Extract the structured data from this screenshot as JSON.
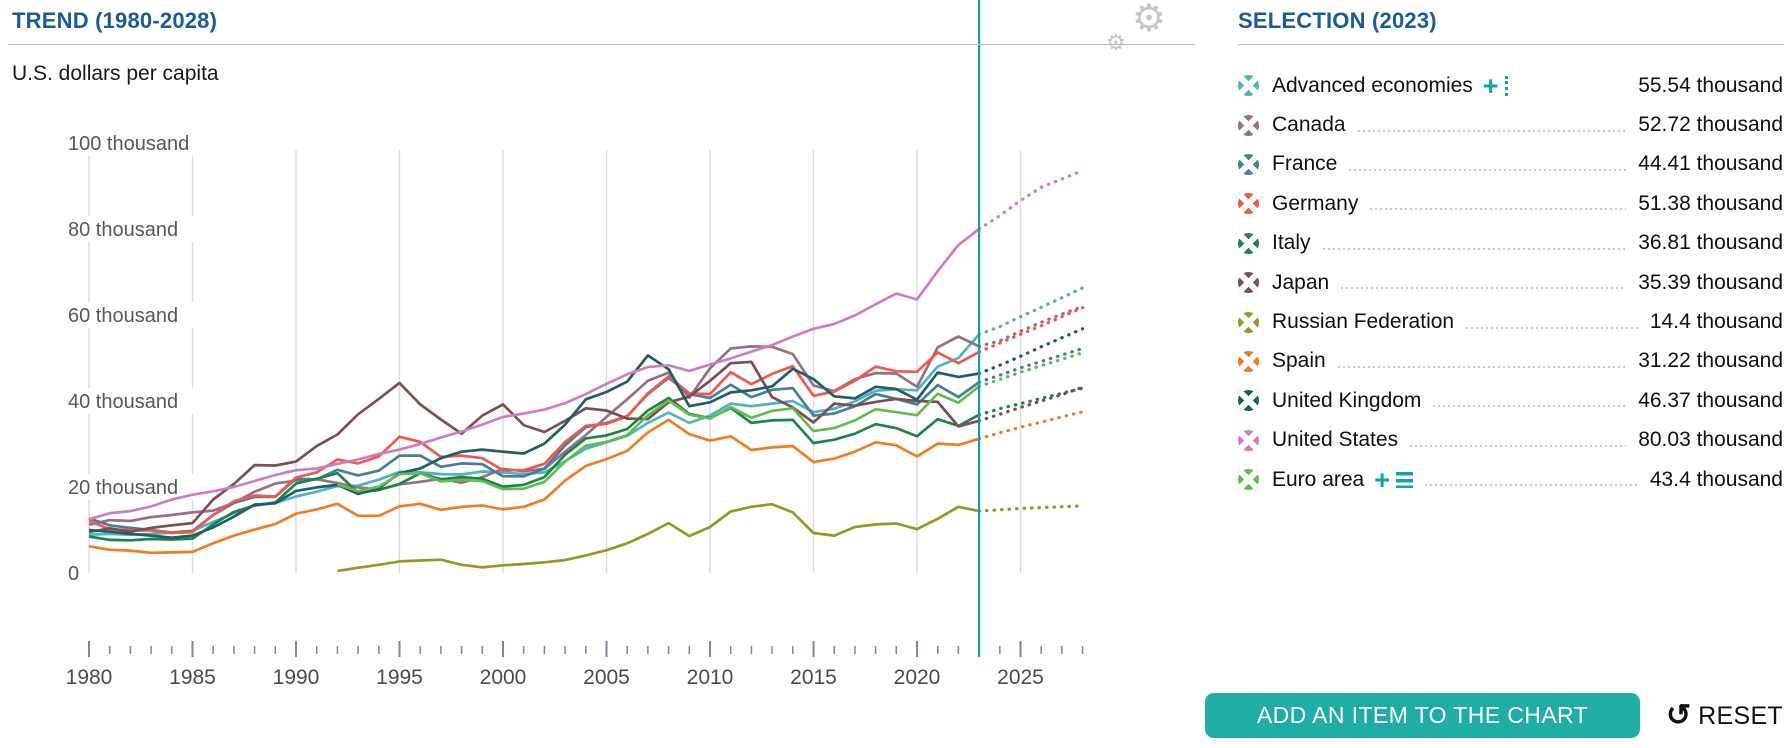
{
  "header": {
    "trend_title": "TREND (1980-2028)",
    "selection_title": "SELECTION (2023)"
  },
  "actions": {
    "add_button": "ADD AN ITEM TO THE CHART",
    "reset_label": "RESET",
    "settings_icon": "gears-icon",
    "reset_icon_glyph": "↺"
  },
  "accent_colors": {
    "title_blue": "#1a5b9b",
    "teal_button": "#20ada6",
    "teal_icon": "#0ea6a0",
    "selection_line": "#2394ae",
    "gridline": "#dcdcdc",
    "tick": "#83839b",
    "axis_text": "#4b4b4b"
  },
  "selection": {
    "rows": [
      {
        "label": "Advanced economies",
        "value": "55.54 thousand",
        "color": "#4eb3c5",
        "add_icons": "plus-dotted",
        "leader": false
      },
      {
        "label": "Canada",
        "value": "52.72 thousand",
        "color": "#9a6f85",
        "add_icons": null,
        "leader": true
      },
      {
        "label": "France",
        "value": "44.41 thousand",
        "color": "#45809b",
        "add_icons": null,
        "leader": true
      },
      {
        "label": "Germany",
        "value": "51.38 thousand",
        "color": "#ef5a4c",
        "add_icons": null,
        "leader": true
      },
      {
        "label": "Italy",
        "value": "36.81 thousand",
        "color": "#1e8549",
        "add_icons": null,
        "leader": true
      },
      {
        "label": "Japan",
        "value": "35.39 thousand",
        "color": "#7d4e53",
        "add_icons": null,
        "leader": true
      },
      {
        "label": "Russian Federation",
        "value": "14.4 thousand",
        "color": "#9a9623",
        "add_icons": null,
        "leader": true
      },
      {
        "label": "Spain",
        "value": "31.22 thousand",
        "color": "#f07d22",
        "add_icons": null,
        "leader": true
      },
      {
        "label": "United Kingdom",
        "value": "46.37 thousand",
        "color": "#205f66",
        "add_icons": null,
        "leader": true
      },
      {
        "label": "United States",
        "value": "80.03 thousand",
        "color": "#cf7cc5",
        "add_icons": null,
        "leader": true
      },
      {
        "label": "Euro area",
        "value": "43.4 thousand",
        "color": "#63bd4e",
        "add_icons": "plus-list",
        "leader": true
      }
    ]
  },
  "chart_data": {
    "type": "line",
    "title": "TREND (1980-2028)",
    "ylabel": "U.S. dollars per capita",
    "unit": "thousand U.S. dollars per capita",
    "xlim": [
      1980,
      2028
    ],
    "ylim": [
      0,
      100
    ],
    "grid": "vertical-only",
    "selection_year": 2023,
    "projection_start": 2023,
    "projection_style": "dotted",
    "y_ticks": [
      {
        "v": 100,
        "label": "100 thousand"
      },
      {
        "v": 80,
        "label": "80 thousand"
      },
      {
        "v": 60,
        "label": "60 thousand"
      },
      {
        "v": 40,
        "label": "40 thousand"
      },
      {
        "v": 20,
        "label": "20 thousand"
      },
      {
        "v": 0,
        "label": "0"
      }
    ],
    "x_ticks": [
      1980,
      1985,
      1990,
      1995,
      2000,
      2005,
      2010,
      2015,
      2020,
      2025
    ],
    "minor_tick_years": [
      1980,
      2028
    ],
    "series": [
      {
        "name": "Advanced economies",
        "color": "#4eb3c5",
        "start_year": 1980,
        "value_2023": 55.54,
        "values": [
          8.9,
          9.1,
          8.9,
          9.1,
          9.4,
          9.8,
          11.9,
          13.9,
          15.7,
          16.3,
          17.8,
          18.9,
          20.2,
          20.3,
          21.7,
          23.5,
          23.4,
          23.0,
          22.9,
          23.6,
          23.4,
          23.0,
          23.4,
          26.0,
          28.9,
          30.4,
          31.9,
          34.9,
          37.3,
          34.9,
          36.6,
          39.4,
          38.8,
          39.4,
          40.0,
          37.4,
          38.2,
          39.9,
          42.4,
          42.7,
          42.5,
          48.0,
          50.0,
          55.5,
          57.3,
          59.6,
          61.8,
          64.0,
          66.3
        ]
      },
      {
        "name": "Canada",
        "color": "#9a6f85",
        "start_year": 1980,
        "value_2023": 52.72,
        "values": [
          11.2,
          12.3,
          12.1,
          13.0,
          13.5,
          14.1,
          14.5,
          16.3,
          18.9,
          20.8,
          21.5,
          21.8,
          20.9,
          19.9,
          19.4,
          20.6,
          21.2,
          21.9,
          21.0,
          22.3,
          24.2,
          23.7,
          24.2,
          28.2,
          32.1,
          36.3,
          40.4,
          44.7,
          46.6,
          40.8,
          47.6,
          52.2,
          52.7,
          52.6,
          50.9,
          43.6,
          42.3,
          45.1,
          46.5,
          46.4,
          43.3,
          52.5,
          55.0,
          52.7,
          54.0,
          56.2,
          58.3,
          60.2,
          62.0
        ]
      },
      {
        "name": "France",
        "color": "#45809b",
        "start_year": 1980,
        "value_2023": 44.41,
        "values": [
          12.7,
          11.1,
          10.5,
          10.0,
          9.4,
          9.8,
          13.5,
          16.3,
          17.7,
          17.7,
          21.9,
          21.8,
          24.0,
          22.7,
          23.8,
          27.3,
          27.3,
          24.7,
          25.5,
          25.3,
          22.5,
          22.5,
          24.3,
          29.7,
          33.9,
          34.9,
          36.5,
          41.6,
          45.4,
          41.6,
          40.7,
          43.8,
          40.9,
          42.6,
          43.0,
          36.6,
          37.1,
          38.8,
          41.6,
          40.5,
          39.2,
          43.7,
          40.9,
          44.4,
          46.0,
          47.7,
          49.2,
          50.7,
          52.2
        ]
      },
      {
        "name": "Germany",
        "color": "#ef5a4c",
        "start_year": 1980,
        "value_2023": 51.38,
        "values": [
          12.1,
          10.2,
          9.9,
          9.9,
          9.3,
          9.5,
          13.5,
          16.7,
          18.0,
          17.8,
          22.2,
          23.4,
          26.4,
          25.5,
          27.1,
          31.7,
          30.5,
          27.0,
          27.3,
          26.7,
          23.9,
          23.9,
          25.4,
          30.5,
          34.2,
          34.7,
          36.4,
          41.8,
          45.7,
          41.8,
          41.6,
          46.7,
          43.9,
          46.3,
          48.1,
          41.2,
          42.2,
          44.7,
          48.0,
          46.9,
          46.8,
          51.3,
          48.8,
          51.4,
          53.5,
          55.5,
          57.5,
          59.6,
          61.7
        ]
      },
      {
        "name": "Italy",
        "color": "#1e8549",
        "start_year": 1980,
        "value_2023": 36.81,
        "values": [
          8.5,
          7.7,
          7.6,
          7.9,
          7.8,
          8.0,
          11.3,
          14.2,
          15.7,
          16.4,
          20.8,
          21.9,
          23.2,
          18.7,
          19.3,
          20.7,
          23.2,
          21.8,
          22.3,
          21.9,
          20.1,
          20.5,
          22.3,
          27.5,
          31.3,
          32.0,
          33.5,
          37.8,
          40.7,
          37.0,
          36.0,
          38.4,
          34.9,
          35.5,
          35.6,
          30.2,
          31.0,
          32.4,
          34.6,
          33.7,
          31.8,
          35.8,
          34.2,
          36.8,
          38.2,
          39.4,
          40.6,
          41.8,
          43.0
        ]
      },
      {
        "name": "Japan",
        "color": "#7d4e53",
        "start_year": 1980,
        "value_2023": 35.39,
        "values": [
          9.5,
          10.4,
          9.6,
          10.5,
          11.1,
          11.6,
          17.1,
          20.7,
          25.1,
          25.0,
          25.9,
          29.5,
          32.2,
          36.9,
          40.5,
          44.2,
          39.2,
          35.7,
          32.4,
          36.6,
          39.2,
          34.4,
          32.8,
          35.4,
          38.3,
          37.8,
          35.9,
          35.8,
          39.7,
          41.0,
          44.7,
          48.8,
          49.1,
          40.9,
          38.5,
          35.0,
          39.4,
          38.9,
          39.8,
          40.5,
          40.0,
          39.8,
          34.1,
          35.4,
          36.9,
          38.5,
          40.0,
          41.5,
          43.2
        ]
      },
      {
        "name": "Russian Federation",
        "color": "#9a9623",
        "start_year": 1992,
        "value_2023": 14.4,
        "values": [
          0.5,
          1.2,
          1.9,
          2.7,
          2.9,
          3.1,
          1.9,
          1.3,
          1.8,
          2.1,
          2.5,
          3.0,
          4.1,
          5.3,
          6.9,
          9.1,
          11.6,
          8.6,
          10.7,
          14.3,
          15.4,
          16.0,
          14.1,
          9.3,
          8.7,
          10.7,
          11.3,
          11.5,
          10.2,
          12.6,
          15.4,
          14.4,
          14.7,
          15.0,
          15.2,
          15.4,
          15.6
        ]
      },
      {
        "name": "Spain",
        "color": "#f07d22",
        "start_year": 1980,
        "value_2023": 31.22,
        "values": [
          6.2,
          5.4,
          5.2,
          4.7,
          4.8,
          4.9,
          6.9,
          8.7,
          10.1,
          11.4,
          13.8,
          14.8,
          16.1,
          13.3,
          13.3,
          15.5,
          16.1,
          14.7,
          15.4,
          15.7,
          14.8,
          15.4,
          17.1,
          21.5,
          24.9,
          26.5,
          28.4,
          32.7,
          35.6,
          32.3,
          30.8,
          31.8,
          28.6,
          29.2,
          29.5,
          25.8,
          26.6,
          28.2,
          30.4,
          29.7,
          27.1,
          30.1,
          29.8,
          31.2,
          32.6,
          33.9,
          35.1,
          36.3,
          37.5
        ]
      },
      {
        "name": "United Kingdom",
        "color": "#205f66",
        "start_year": 1980,
        "value_2023": 46.37,
        "values": [
          10.0,
          9.6,
          9.1,
          8.7,
          8.2,
          8.7,
          10.6,
          13.1,
          15.9,
          16.2,
          19.1,
          19.9,
          20.5,
          18.4,
          19.7,
          23.2,
          24.3,
          26.7,
          28.2,
          28.7,
          28.2,
          27.8,
          30.1,
          34.5,
          40.4,
          42.1,
          44.5,
          50.6,
          47.4,
          38.8,
          39.7,
          42.0,
          42.5,
          43.4,
          47.5,
          45.1,
          41.1,
          40.6,
          43.3,
          42.8,
          40.3,
          46.6,
          45.6,
          46.4,
          48.3,
          50.4,
          52.6,
          54.7,
          56.8
        ]
      },
      {
        "name": "Euro area",
        "color": "#63bd4e",
        "start_year": 1992,
        "value_2023": 43.4,
        "values": [
          20.6,
          19.0,
          20.1,
          23.0,
          23.2,
          21.3,
          21.7,
          21.4,
          19.5,
          19.6,
          21.2,
          25.9,
          29.6,
          30.5,
          32.1,
          36.7,
          40.1,
          36.8,
          35.9,
          38.6,
          36.1,
          37.7,
          38.3,
          33.0,
          33.7,
          35.5,
          38.1,
          37.4,
          36.7,
          41.7,
          39.6,
          43.4,
          45.0,
          46.7,
          48.2,
          49.7,
          51.2
        ]
      },
      {
        "name": "United States",
        "color": "#cf7cc5",
        "start_year": 1980,
        "value_2023": 80.03,
        "values": [
          12.5,
          13.9,
          14.4,
          15.5,
          17.1,
          18.2,
          19.0,
          20.0,
          21.4,
          22.8,
          23.9,
          24.3,
          25.4,
          26.4,
          27.7,
          28.7,
          30.0,
          31.5,
          32.9,
          34.5,
          36.3,
          37.1,
          38.0,
          39.5,
          41.6,
          44.0,
          46.2,
          47.9,
          48.3,
          47.0,
          48.5,
          49.9,
          51.5,
          53.0,
          55.0,
          56.8,
          57.9,
          59.9,
          62.5,
          65.0,
          63.6,
          70.2,
          76.3,
          80.0,
          83.1,
          86.6,
          89.7,
          91.6,
          93.6
        ]
      }
    ]
  }
}
